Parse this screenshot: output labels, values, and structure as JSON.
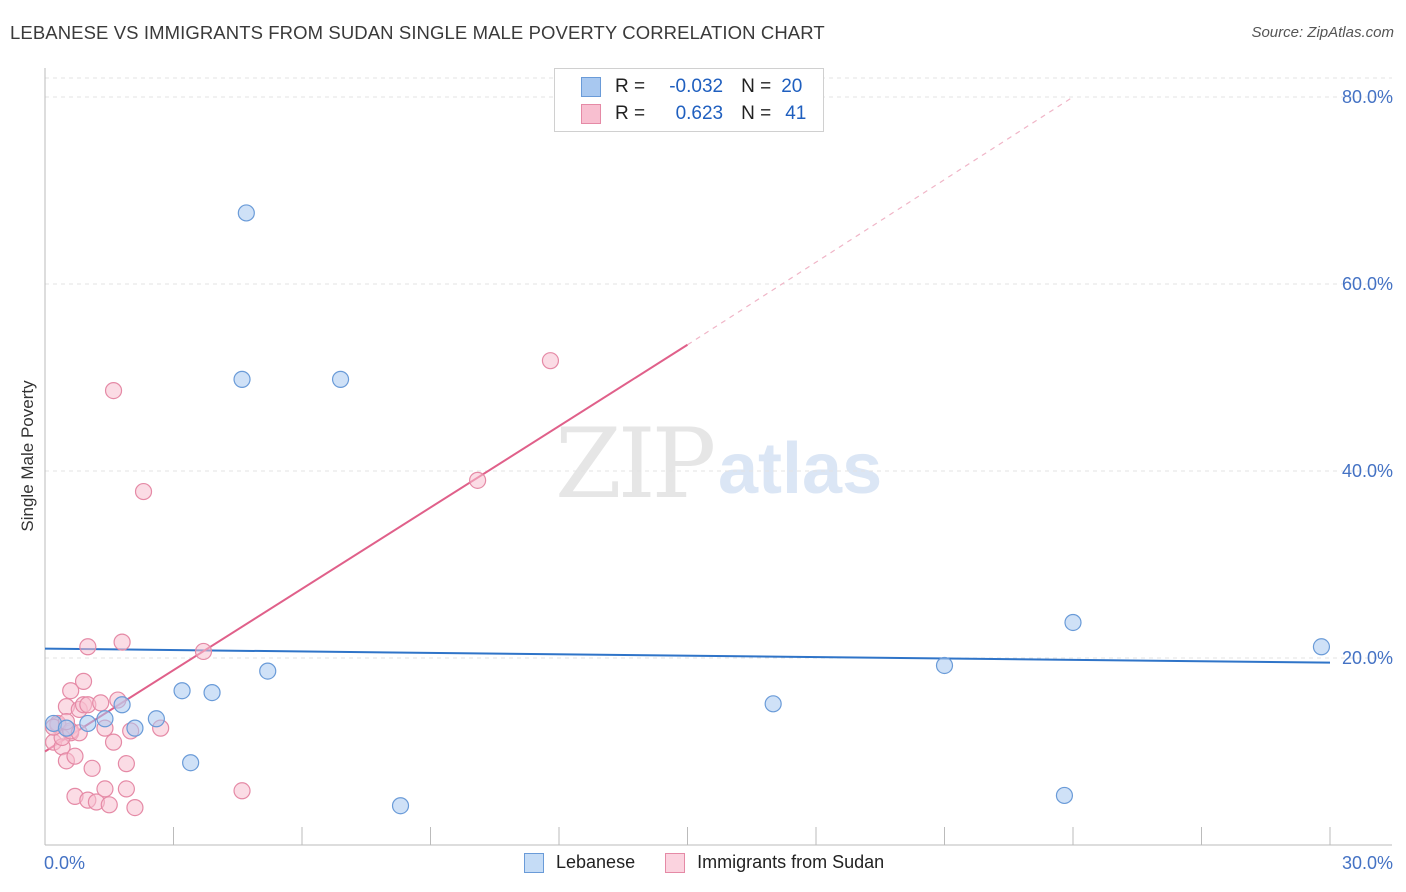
{
  "title": "LEBANESE VS IMMIGRANTS FROM SUDAN SINGLE MALE POVERTY CORRELATION CHART",
  "source": "Source: ZipAtlas.com",
  "watermark": {
    "zip": "ZIP",
    "atlas": "atlas"
  },
  "legend": {
    "rows": [
      {
        "r_label": "R =",
        "r_value": "-0.032",
        "n_label": "N =",
        "n_value": "20",
        "color": "#a8c8f0",
        "border": "#6a9bd8"
      },
      {
        "r_label": "R =",
        "r_value": "0.623",
        "n_label": "N =",
        "n_value": "41",
        "color": "#f8bfd0",
        "border": "#e58aa6"
      }
    ]
  },
  "bottom_legend": [
    "Lebanese",
    "Immigrants from Sudan"
  ],
  "chart_data": {
    "type": "scatter",
    "title": "LEBANESE VS IMMIGRANTS FROM SUDAN SINGLE MALE POVERTY CORRELATION CHART",
    "xlabel": "",
    "ylabel": "Single Male Poverty",
    "xlim": [
      0,
      30
    ],
    "ylim": [
      0,
      80
    ],
    "x_tick_labels": [
      "0.0%",
      "30.0%"
    ],
    "y_ticks": [
      20,
      40,
      60,
      80
    ],
    "y_tick_labels": [
      "20.0%",
      "40.0%",
      "60.0%",
      "80.0%"
    ],
    "series": [
      {
        "name": "Lebanese",
        "color": "#a8c8f0",
        "stroke": "#6a9bd8",
        "trend_color": "#2f74c8",
        "trend": {
          "x0": 0,
          "y0": 21.0,
          "x1": 30,
          "y1": 19.5
        },
        "points": [
          [
            0.2,
            13.0
          ],
          [
            1.0,
            13.0
          ],
          [
            1.4,
            13.5
          ],
          [
            1.8,
            15.0
          ],
          [
            2.1,
            12.5
          ],
          [
            2.6,
            13.5
          ],
          [
            3.2,
            16.5
          ],
          [
            3.4,
            8.8
          ],
          [
            3.9,
            16.3
          ],
          [
            4.6,
            49.8
          ],
          [
            4.7,
            67.6
          ],
          [
            5.2,
            18.6
          ],
          [
            6.9,
            49.8
          ],
          [
            8.3,
            4.2
          ],
          [
            17.0,
            15.1
          ],
          [
            21.0,
            19.2
          ],
          [
            23.8,
            5.3
          ],
          [
            24.0,
            23.8
          ],
          [
            29.8,
            21.2
          ],
          [
            0.5,
            12.5
          ]
        ]
      },
      {
        "name": "Immigrants from Sudan",
        "color": "#f8bfd0",
        "stroke": "#e58aa6",
        "trend_color": "#e0608a",
        "trend": {
          "x0": 0,
          "y0": 10.0,
          "x1": 15,
          "y1": 53.5
        },
        "trend_ext": {
          "x0": 15,
          "y0": 53.5,
          "x1": 24,
          "y1": 80.0
        },
        "points": [
          [
            0.2,
            11.0
          ],
          [
            0.3,
            12.8
          ],
          [
            0.4,
            10.5
          ],
          [
            0.5,
            14.8
          ],
          [
            0.6,
            12.0
          ],
          [
            0.5,
            9.0
          ],
          [
            0.6,
            16.5
          ],
          [
            0.7,
            9.5
          ],
          [
            0.8,
            14.5
          ],
          [
            0.9,
            17.5
          ],
          [
            0.9,
            15.0
          ],
          [
            0.7,
            5.2
          ],
          [
            1.0,
            4.8
          ],
          [
            1.0,
            15.0
          ],
          [
            1.0,
            21.2
          ],
          [
            1.1,
            8.2
          ],
          [
            1.2,
            4.6
          ],
          [
            1.3,
            15.2
          ],
          [
            1.4,
            6.0
          ],
          [
            1.4,
            12.5
          ],
          [
            1.5,
            4.3
          ],
          [
            1.6,
            11.0
          ],
          [
            1.6,
            48.6
          ],
          [
            1.7,
            15.5
          ],
          [
            1.8,
            21.7
          ],
          [
            1.9,
            8.7
          ],
          [
            1.9,
            6.0
          ],
          [
            2.0,
            12.2
          ],
          [
            2.1,
            4.0
          ],
          [
            2.3,
            37.8
          ],
          [
            2.7,
            12.5
          ],
          [
            3.7,
            20.7
          ],
          [
            4.6,
            5.8
          ],
          [
            10.1,
            39.0
          ],
          [
            11.8,
            51.8
          ],
          [
            0.3,
            13.0
          ],
          [
            0.4,
            11.5
          ],
          [
            0.6,
            12.2
          ],
          [
            0.2,
            12.6
          ],
          [
            0.8,
            12.0
          ],
          [
            0.5,
            13.2
          ]
        ]
      }
    ]
  }
}
